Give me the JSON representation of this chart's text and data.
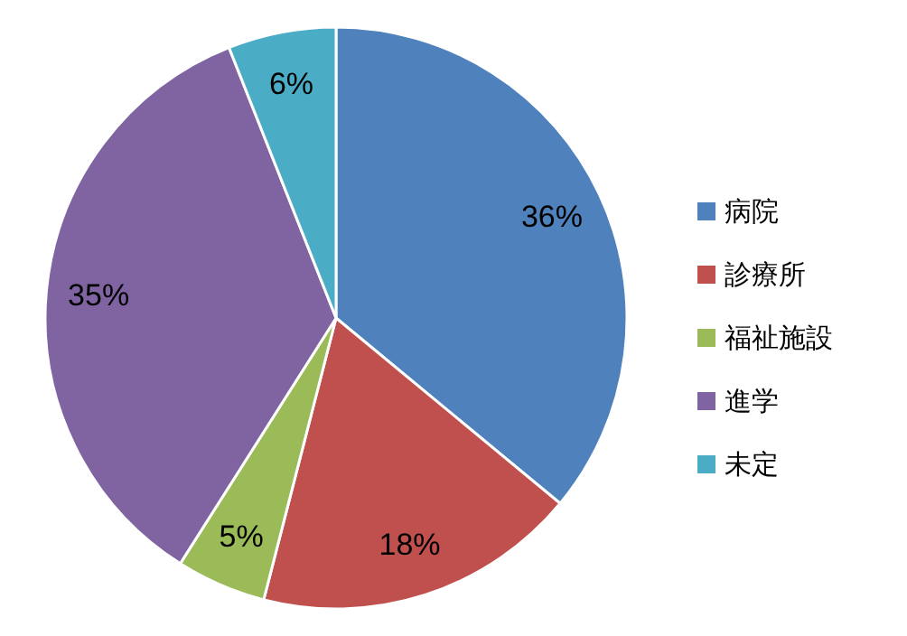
{
  "chart_data": {
    "type": "pie",
    "categories": [
      "病院",
      "診療所",
      "福祉施設",
      "進学",
      "未定"
    ],
    "values": [
      36,
      18,
      5,
      35,
      6
    ],
    "value_labels": [
      "36%",
      "18%",
      "5%",
      "35%",
      "6%"
    ],
    "colors": [
      "#4f81bd",
      "#c0504d",
      "#9bbb59",
      "#8064a2",
      "#4bacc6"
    ],
    "legend": "right"
  }
}
